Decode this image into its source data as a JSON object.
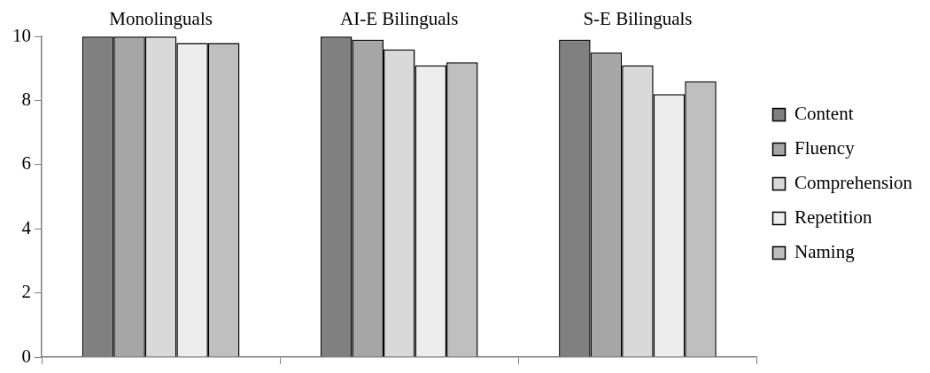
{
  "chart_data": {
    "type": "bar",
    "categories": [
      "Monolinguals",
      "AI-E Bilinguals",
      "S-E Bilinguals"
    ],
    "series": [
      {
        "name": "Content",
        "color": "#808080",
        "values": [
          10,
          10,
          9.9
        ]
      },
      {
        "name": "Fluency",
        "color": "#a6a6a6",
        "values": [
          10,
          9.9,
          9.5
        ]
      },
      {
        "name": "Comprehension",
        "color": "#d9d9d9",
        "values": [
          10,
          9.6,
          9.1
        ]
      },
      {
        "name": "Repetition",
        "color": "#ededed",
        "values": [
          9.8,
          9.1,
          8.2
        ]
      },
      {
        "name": "Naming",
        "color": "#bfbfbf",
        "values": [
          9.8,
          9.2,
          8.6
        ]
      }
    ],
    "ylim": [
      0,
      10
    ],
    "yticks": [
      0,
      2,
      4,
      6,
      8,
      10
    ],
    "grid": false,
    "legend": "right"
  }
}
